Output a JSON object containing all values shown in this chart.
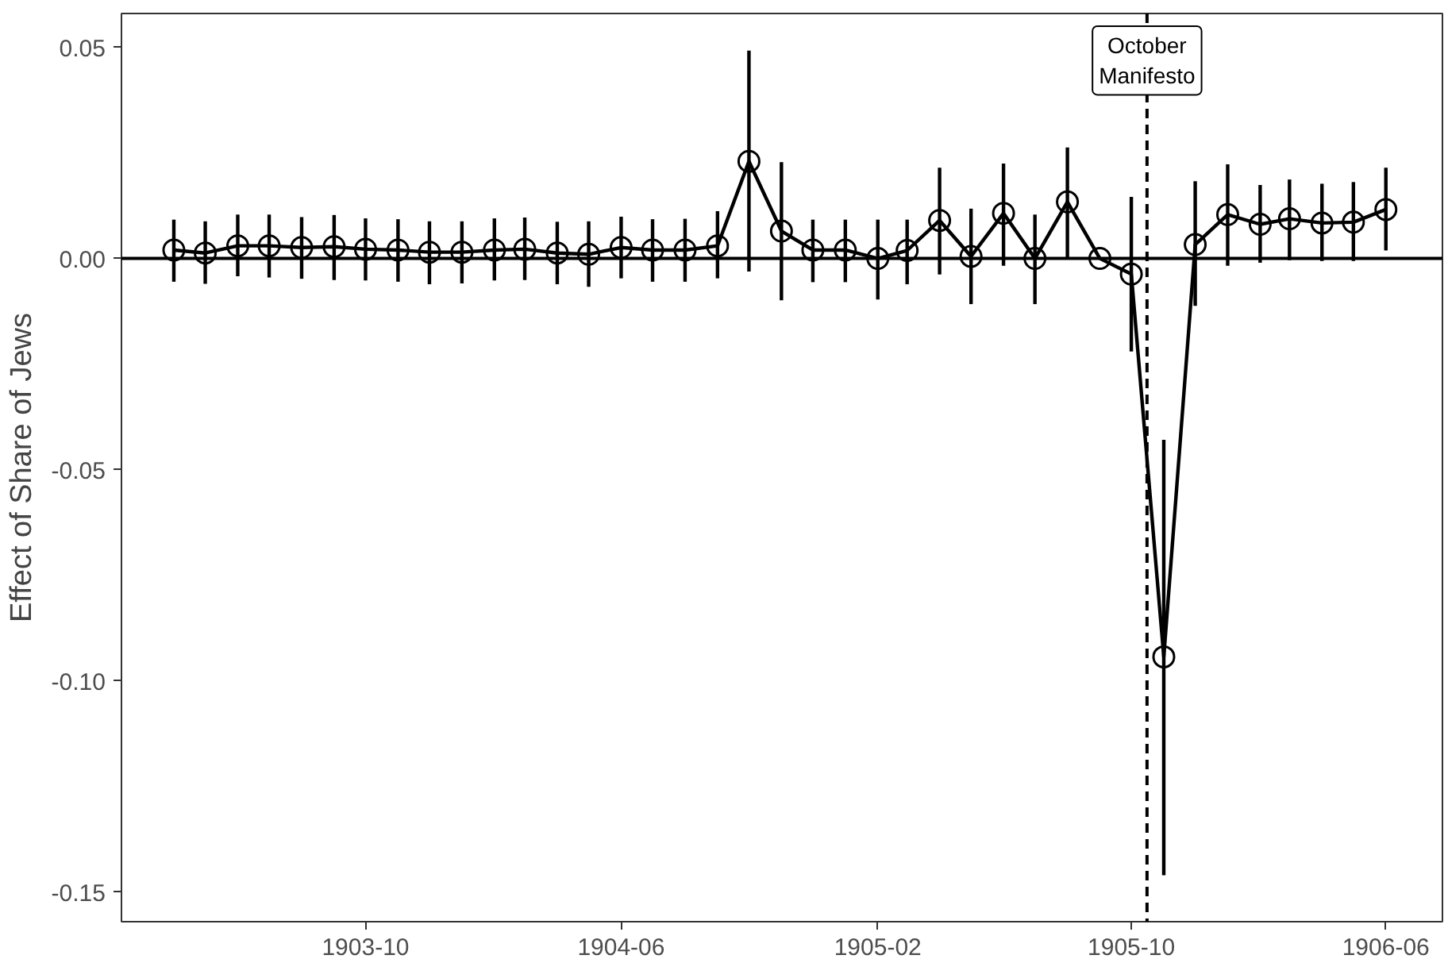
{
  "chart_data": {
    "type": "line",
    "ylabel": "Effect of Share of Jews",
    "x": [
      "1903-04",
      "1903-05",
      "1903-06",
      "1903-07",
      "1903-08",
      "1903-09",
      "1903-10",
      "1903-11",
      "1903-12",
      "1904-01",
      "1904-02",
      "1904-03",
      "1904-04",
      "1904-05",
      "1904-06",
      "1904-07",
      "1904-08",
      "1904-09",
      "1904-10",
      "1904-11",
      "1904-12",
      "1905-01",
      "1905-02",
      "1905-03",
      "1905-04",
      "1905-05",
      "1905-06",
      "1905-07",
      "1905-08",
      "1905-09",
      "1905-10",
      "1905-11",
      "1905-12",
      "1906-01",
      "1906-02",
      "1906-03",
      "1906-04",
      "1906-05",
      "1906-06"
    ],
    "series": [
      {
        "color": "#000000",
        "values": [
          0.002,
          0.0013,
          0.003,
          0.003,
          0.0026,
          0.0028,
          0.0022,
          0.002,
          0.0015,
          0.0015,
          0.002,
          0.0022,
          0.0013,
          0.001,
          0.0026,
          0.002,
          0.002,
          0.003,
          0.023,
          0.0065,
          0.002,
          0.002,
          0.0,
          0.0019,
          0.009,
          0.0005,
          0.0107,
          0.0,
          0.0134,
          0.0,
          -0.0037,
          -0.0943,
          0.0033,
          0.0104,
          0.0081,
          0.0094,
          0.0084,
          0.0086,
          0.0116
        ],
        "errors": [
          [
            -0.0055,
            0.0092
          ],
          [
            -0.006,
            0.0088
          ],
          [
            -0.0042,
            0.0104
          ],
          [
            -0.0045,
            0.0104
          ],
          [
            -0.0048,
            0.0098
          ],
          [
            -0.0051,
            0.0103
          ],
          [
            -0.0052,
            0.0095
          ],
          [
            -0.0055,
            0.0093
          ],
          [
            -0.0061,
            0.0088
          ],
          [
            -0.0059,
            0.0088
          ],
          [
            -0.0052,
            0.0095
          ],
          [
            -0.0051,
            0.0097
          ],
          [
            -0.0061,
            0.0087
          ],
          [
            -0.0067,
            0.0088
          ],
          [
            -0.0047,
            0.0099
          ],
          [
            -0.0055,
            0.0093
          ],
          [
            -0.0055,
            0.0094
          ],
          [
            -0.0047,
            0.0112
          ],
          [
            -0.0031,
            0.0492
          ],
          [
            -0.0099,
            0.0228
          ],
          [
            -0.0056,
            0.0092
          ],
          [
            -0.0056,
            0.0092
          ],
          [
            -0.0097,
            0.0092
          ],
          [
            -0.0061,
            0.0092
          ],
          [
            -0.0038,
            0.0215
          ],
          [
            -0.0108,
            0.0118
          ],
          [
            -0.0017,
            0.0225
          ],
          [
            -0.0108,
            0.0104
          ],
          [
            0.0,
            0.0263
          ],
          null,
          [
            -0.022,
            0.0146
          ],
          [
            -0.146,
            -0.0429
          ],
          [
            -0.0112,
            0.0183
          ],
          [
            -0.0017,
            0.0223
          ],
          [
            -0.001,
            0.0174
          ],
          [
            -0.0004,
            0.0187
          ],
          [
            -0.0006,
            0.0177
          ],
          [
            -0.0006,
            0.0181
          ],
          [
            0.0019,
            0.0215
          ]
        ]
      }
    ],
    "xlim": [
      "1903-02-10",
      "1906-07-25"
    ],
    "xticks": [
      "1903-10",
      "1904-06",
      "1905-02",
      "1905-10",
      "1906-06"
    ],
    "ylim": [
      -0.157,
      0.058
    ],
    "yticks": [
      {
        "value": -0.15,
        "label": "-0.15"
      },
      {
        "value": -0.1,
        "label": "-0.10"
      },
      {
        "value": -0.05,
        "label": "-0.05"
      },
      {
        "value": 0,
        "label": "0.00"
      },
      {
        "value": 0.05,
        "label": "0.05"
      }
    ],
    "ref_lines": [
      {
        "axis": "y",
        "value": 0,
        "line_style": "solid",
        "color": "#000000"
      },
      {
        "axis": "x",
        "value": "1905-10-16",
        "label": "October\nManifesto",
        "line_style": "dashed",
        "color": "#000000"
      }
    ],
    "marker": "circle",
    "line_style": "solid",
    "grid": false
  }
}
